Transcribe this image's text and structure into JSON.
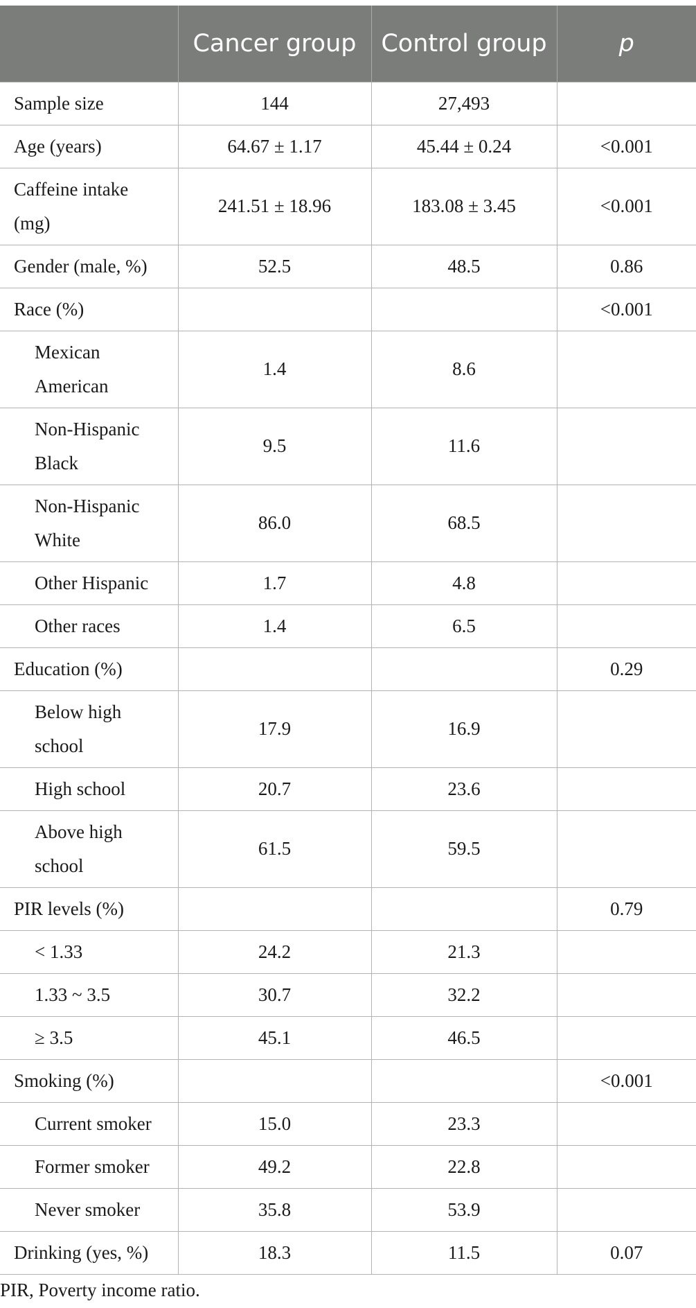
{
  "table": {
    "headers": [
      "",
      "Cancer group",
      "Control group",
      "p"
    ],
    "rows": [
      {
        "label": "Sample size",
        "cancer": "144",
        "control": "27,493",
        "p": ""
      },
      {
        "label": "Age (years)",
        "cancer": "64.67 ± 1.17",
        "control": "45.44 ± 0.24",
        "p": "<0.001"
      },
      {
        "label": "Caffeine intake (mg)",
        "cancer": "241.51 ± 18.96",
        "control": "183.08 ± 3.45",
        "p": "<0.001"
      },
      {
        "label": "Gender (male, %)",
        "cancer": "52.5",
        "control": "48.5",
        "p": "0.86"
      },
      {
        "label": "Race (%)",
        "cancer": "",
        "control": "",
        "p": "<0.001"
      },
      {
        "label": "Mexican American",
        "cancer": "1.4",
        "control": "8.6",
        "p": ""
      },
      {
        "label": "Non-Hispanic Black",
        "cancer": "9.5",
        "control": "11.6",
        "p": ""
      },
      {
        "label": "Non-Hispanic White",
        "cancer": "86.0",
        "control": "68.5",
        "p": ""
      },
      {
        "label": "Other Hispanic",
        "cancer": "1.7",
        "control": "4.8",
        "p": ""
      },
      {
        "label": "Other races",
        "cancer": "1.4",
        "control": "6.5",
        "p": ""
      },
      {
        "label": "Education (%)",
        "cancer": "",
        "control": "",
        "p": "0.29"
      },
      {
        "label": "Below high school",
        "cancer": "17.9",
        "control": "16.9",
        "p": ""
      },
      {
        "label": "High school",
        "cancer": "20.7",
        "control": "23.6",
        "p": ""
      },
      {
        "label": "Above high school",
        "cancer": "61.5",
        "control": "59.5",
        "p": ""
      },
      {
        "label": "PIR levels (%)",
        "cancer": "",
        "control": "",
        "p": "0.79"
      },
      {
        "label": "< 1.33",
        "cancer": "24.2",
        "control": "21.3",
        "p": ""
      },
      {
        "label": "1.33 ~ 3.5",
        "cancer": "30.7",
        "control": "32.2",
        "p": ""
      },
      {
        "label": "≥ 3.5",
        "cancer": "45.1",
        "control": "46.5",
        "p": ""
      },
      {
        "label": "Smoking (%)",
        "cancer": "",
        "control": "",
        "p": "<0.001"
      },
      {
        "label": "Current smoker",
        "cancer": "15.0",
        "control": "23.3",
        "p": ""
      },
      {
        "label": "Former smoker",
        "cancer": "49.2",
        "control": "22.8",
        "p": ""
      },
      {
        "label": "Never smoker",
        "cancer": "35.8",
        "control": "53.9",
        "p": ""
      },
      {
        "label": "Drinking (yes, %)",
        "cancer": "18.3",
        "control": "11.5",
        "p": "0.07"
      }
    ]
  },
  "footnote": "PIR, Poverty income ratio."
}
